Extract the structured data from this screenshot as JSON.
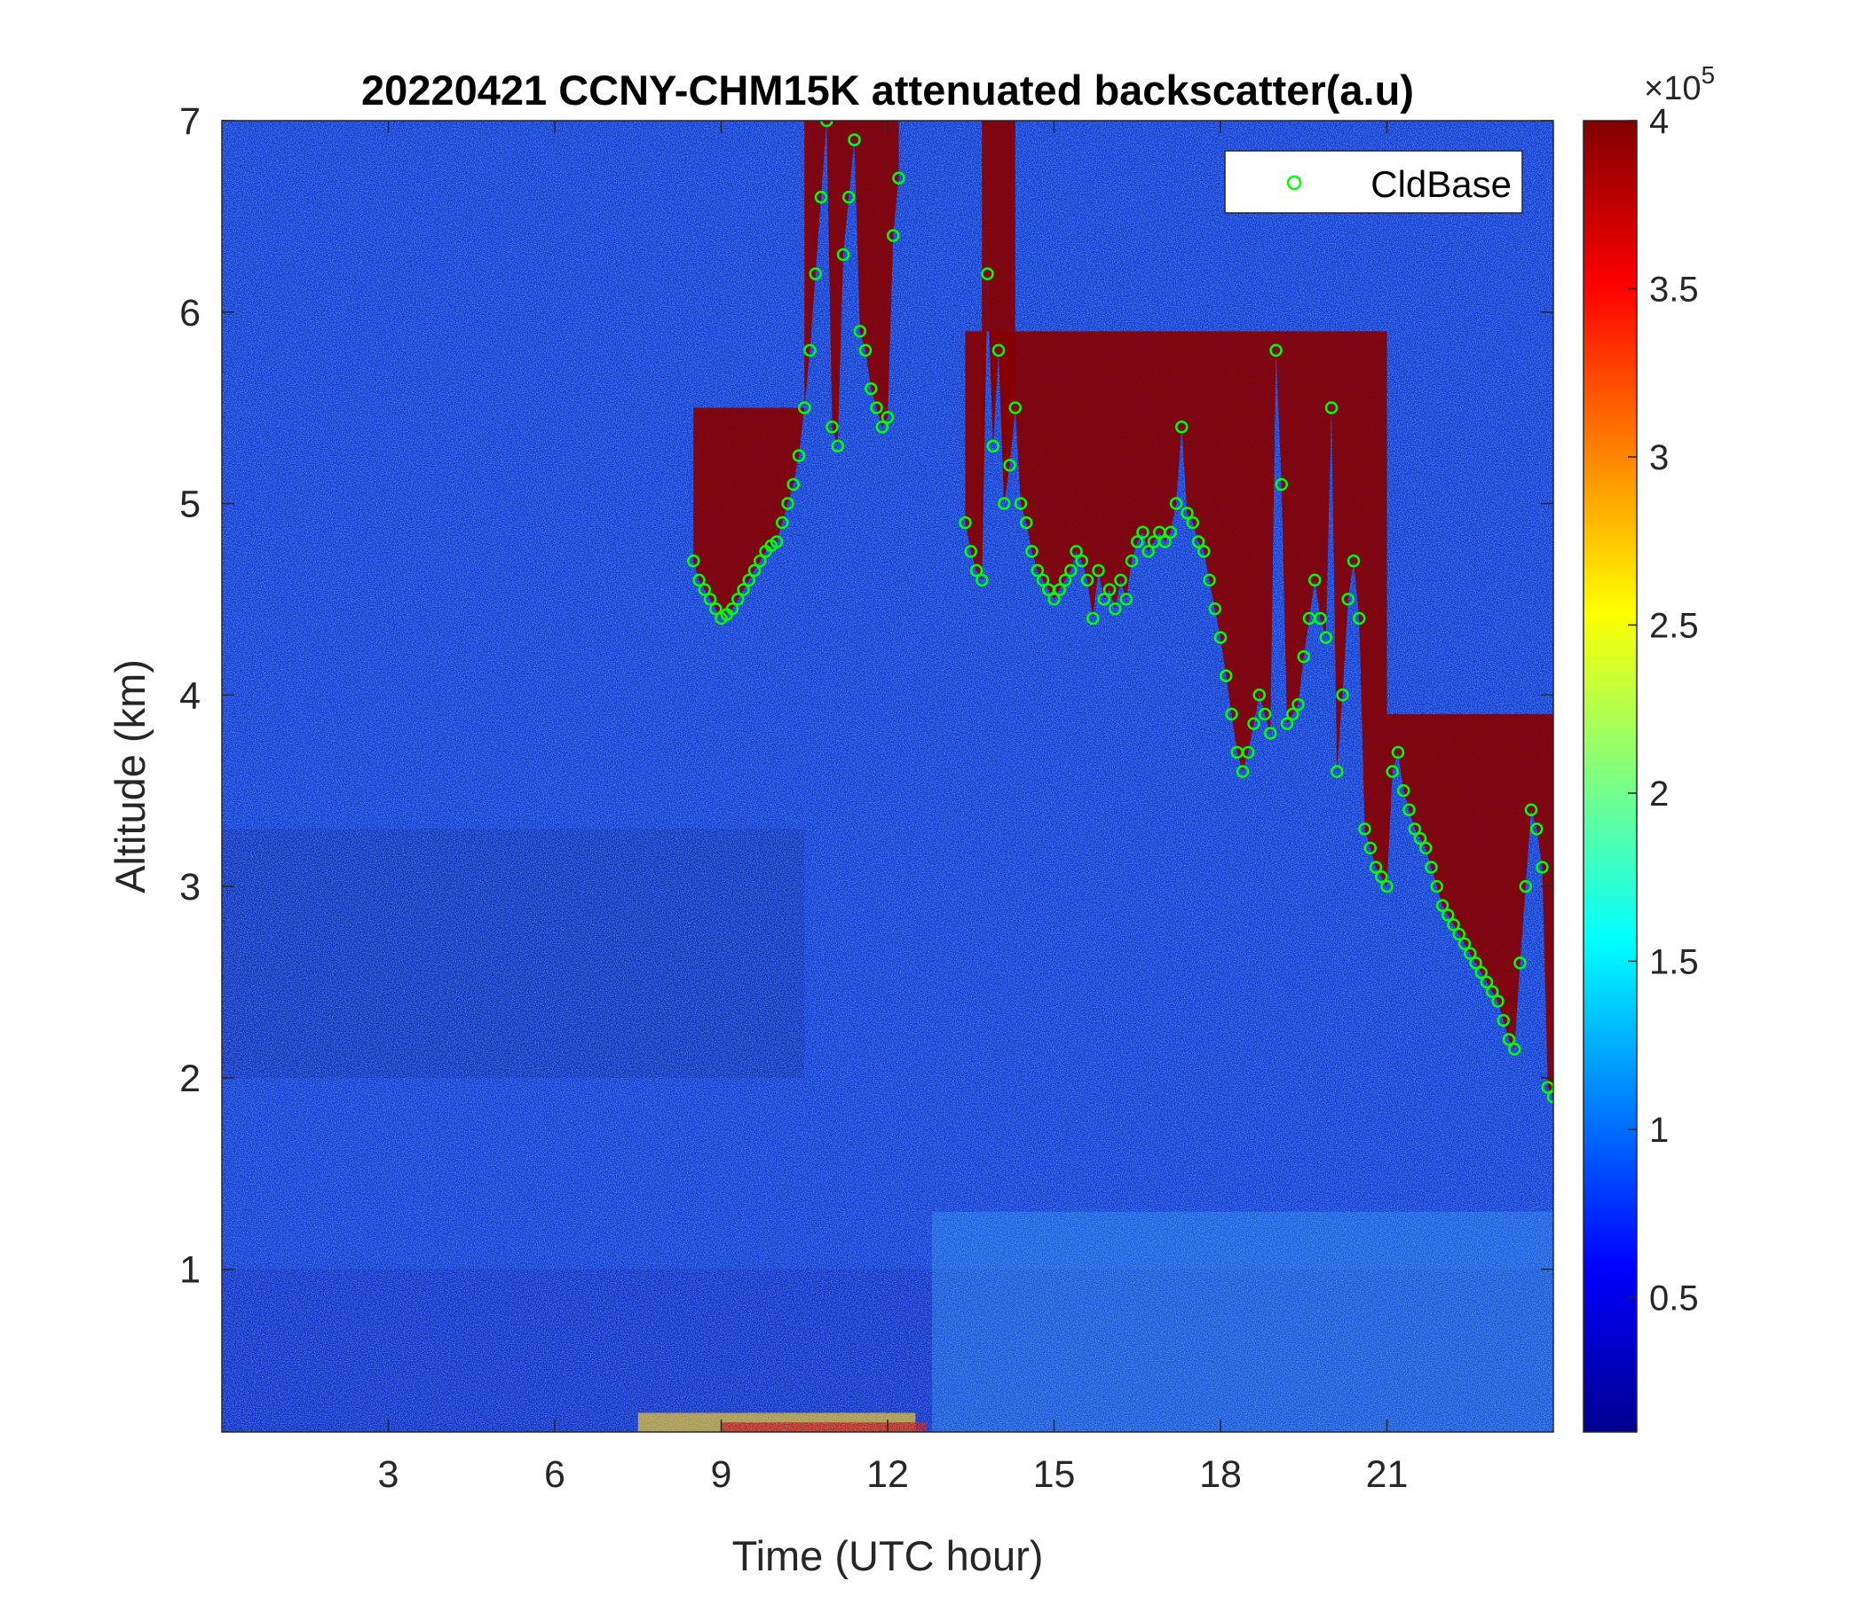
{
  "chart_data": {
    "type": "heatmap",
    "title": "20220421 CCNY-CHM15K attenuated backscatter(a.u)",
    "xlabel": "Time (UTC hour)",
    "ylabel": "Altitude (km)",
    "xlim": [
      0,
      24
    ],
    "ylim": [
      0.15,
      7
    ],
    "xticks": [
      3,
      6,
      9,
      12,
      15,
      18,
      21
    ],
    "xtick_labels": [
      "3",
      "6",
      "9",
      "12",
      "15",
      "18",
      "21"
    ],
    "yticks": [
      1,
      2,
      3,
      4,
      5,
      6,
      7
    ],
    "ytick_labels": [
      "1",
      "2",
      "3",
      "4",
      "5",
      "6",
      "7"
    ],
    "colorbar": {
      "colormap": "jet",
      "range": [
        10000,
        400000
      ],
      "exponent_label": "×10",
      "exponent_power": "5",
      "ticks": [
        0.5,
        1,
        1.5,
        2,
        2.5,
        3,
        3.5,
        4
      ],
      "tick_labels": [
        "0.5",
        "1",
        "1.5",
        "2",
        "2.5",
        "3",
        "3.5",
        "4"
      ]
    },
    "legend": {
      "placement": "top-right",
      "entries": [
        "CldBase"
      ]
    },
    "series": [
      {
        "name": "CldBase",
        "marker": "open-circle",
        "color": "#00ff00",
        "points": [
          [
            8.5,
            4.7
          ],
          [
            8.6,
            4.6
          ],
          [
            8.7,
            4.55
          ],
          [
            8.8,
            4.5
          ],
          [
            8.9,
            4.45
          ],
          [
            9.0,
            4.4
          ],
          [
            9.1,
            4.42
          ],
          [
            9.2,
            4.45
          ],
          [
            9.3,
            4.5
          ],
          [
            9.4,
            4.55
          ],
          [
            9.5,
            4.6
          ],
          [
            9.6,
            4.65
          ],
          [
            9.7,
            4.7
          ],
          [
            9.8,
            4.75
          ],
          [
            9.9,
            4.78
          ],
          [
            10.0,
            4.8
          ],
          [
            10.1,
            4.9
          ],
          [
            10.2,
            5.0
          ],
          [
            10.3,
            5.1
          ],
          [
            10.4,
            5.25
          ],
          [
            10.5,
            5.5
          ],
          [
            10.6,
            5.8
          ],
          [
            10.7,
            6.2
          ],
          [
            10.8,
            6.6
          ],
          [
            10.9,
            7.0
          ],
          [
            11.0,
            5.4
          ],
          [
            11.1,
            5.3
          ],
          [
            11.2,
            6.3
          ],
          [
            11.3,
            6.6
          ],
          [
            11.4,
            6.9
          ],
          [
            11.5,
            5.9
          ],
          [
            11.6,
            5.8
          ],
          [
            11.7,
            5.6
          ],
          [
            11.8,
            5.5
          ],
          [
            11.9,
            5.4
          ],
          [
            12.0,
            5.45
          ],
          [
            12.1,
            6.4
          ],
          [
            12.2,
            6.7
          ],
          [
            13.4,
            4.9
          ],
          [
            13.5,
            4.75
          ],
          [
            13.6,
            4.65
          ],
          [
            13.7,
            4.6
          ],
          [
            13.8,
            6.2
          ],
          [
            13.9,
            5.3
          ],
          [
            14.0,
            5.8
          ],
          [
            14.1,
            5.0
          ],
          [
            14.2,
            5.2
          ],
          [
            14.3,
            5.5
          ],
          [
            14.4,
            5.0
          ],
          [
            14.5,
            4.9
          ],
          [
            14.6,
            4.75
          ],
          [
            14.7,
            4.65
          ],
          [
            14.8,
            4.6
          ],
          [
            14.9,
            4.55
          ],
          [
            15.0,
            4.5
          ],
          [
            15.1,
            4.55
          ],
          [
            15.2,
            4.6
          ],
          [
            15.3,
            4.65
          ],
          [
            15.4,
            4.75
          ],
          [
            15.5,
            4.7
          ],
          [
            15.6,
            4.6
          ],
          [
            15.7,
            4.4
          ],
          [
            15.8,
            4.65
          ],
          [
            15.9,
            4.5
          ],
          [
            16.0,
            4.55
          ],
          [
            16.1,
            4.45
          ],
          [
            16.2,
            4.6
          ],
          [
            16.3,
            4.5
          ],
          [
            16.4,
            4.7
          ],
          [
            16.5,
            4.8
          ],
          [
            16.6,
            4.85
          ],
          [
            16.7,
            4.75
          ],
          [
            16.8,
            4.8
          ],
          [
            16.9,
            4.85
          ],
          [
            17.0,
            4.8
          ],
          [
            17.1,
            4.85
          ],
          [
            17.2,
            5.0
          ],
          [
            17.3,
            5.4
          ],
          [
            17.4,
            4.95
          ],
          [
            17.5,
            4.9
          ],
          [
            17.6,
            4.8
          ],
          [
            17.7,
            4.75
          ],
          [
            17.8,
            4.6
          ],
          [
            17.9,
            4.45
          ],
          [
            18.0,
            4.3
          ],
          [
            18.1,
            4.1
          ],
          [
            18.2,
            3.9
          ],
          [
            18.3,
            3.7
          ],
          [
            18.4,
            3.6
          ],
          [
            18.5,
            3.7
          ],
          [
            18.6,
            3.85
          ],
          [
            18.7,
            4.0
          ],
          [
            18.8,
            3.9
          ],
          [
            18.9,
            3.8
          ],
          [
            19.0,
            5.8
          ],
          [
            19.1,
            5.1
          ],
          [
            19.2,
            3.85
          ],
          [
            19.3,
            3.9
          ],
          [
            19.4,
            3.95
          ],
          [
            19.5,
            4.2
          ],
          [
            19.6,
            4.4
          ],
          [
            19.7,
            4.6
          ],
          [
            19.8,
            4.4
          ],
          [
            19.9,
            4.3
          ],
          [
            20.0,
            5.5
          ],
          [
            20.1,
            3.6
          ],
          [
            20.2,
            4.0
          ],
          [
            20.3,
            4.5
          ],
          [
            20.4,
            4.7
          ],
          [
            20.5,
            4.4
          ],
          [
            20.6,
            3.3
          ],
          [
            20.7,
            3.2
          ],
          [
            20.8,
            3.1
          ],
          [
            20.9,
            3.05
          ],
          [
            21.0,
            3.0
          ],
          [
            21.1,
            3.6
          ],
          [
            21.2,
            3.7
          ],
          [
            21.3,
            3.5
          ],
          [
            21.4,
            3.4
          ],
          [
            21.5,
            3.3
          ],
          [
            21.6,
            3.25
          ],
          [
            21.7,
            3.2
          ],
          [
            21.8,
            3.1
          ],
          [
            21.9,
            3.0
          ],
          [
            22.0,
            2.9
          ],
          [
            22.1,
            2.85
          ],
          [
            22.2,
            2.8
          ],
          [
            22.3,
            2.75
          ],
          [
            22.4,
            2.7
          ],
          [
            22.5,
            2.65
          ],
          [
            22.6,
            2.6
          ],
          [
            22.7,
            2.55
          ],
          [
            22.8,
            2.5
          ],
          [
            22.9,
            2.45
          ],
          [
            23.0,
            2.4
          ],
          [
            23.1,
            2.3
          ],
          [
            23.2,
            2.2
          ],
          [
            23.3,
            2.15
          ],
          [
            23.4,
            2.6
          ],
          [
            23.5,
            3.0
          ],
          [
            23.6,
            3.4
          ],
          [
            23.7,
            3.3
          ],
          [
            23.8,
            3.1
          ],
          [
            23.9,
            1.95
          ],
          [
            24.0,
            1.9
          ]
        ]
      }
    ]
  }
}
